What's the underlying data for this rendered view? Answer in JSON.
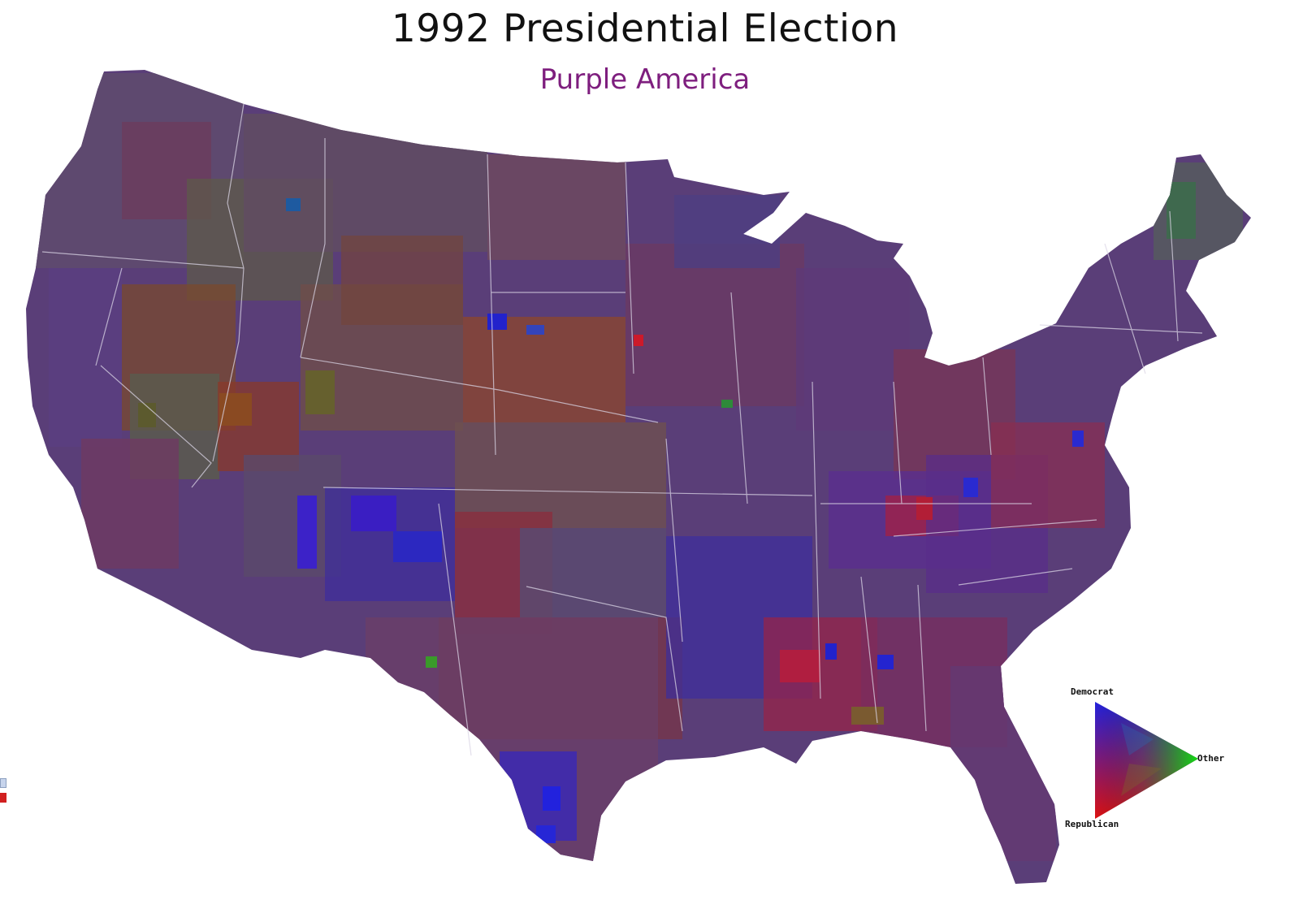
{
  "title": "1992 Presidential Election",
  "subtitle": "Purple America",
  "colors": {
    "democrat": "#1a1ae6",
    "republican": "#e61a1a",
    "other": "#1ad21a",
    "subtitle": "#7e1e7e",
    "base_purple": "#5a3a7a"
  },
  "legend": {
    "top_label": "Democrat",
    "right_label": "Other",
    "bottom_label": "Republican"
  }
}
